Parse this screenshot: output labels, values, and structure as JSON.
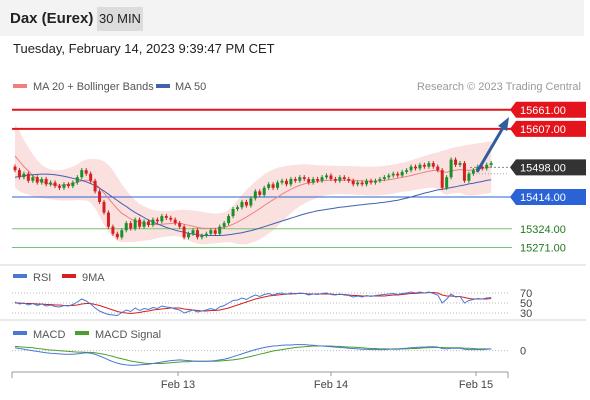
{
  "header": {
    "instrument": "Dax (Eurex)",
    "timeframe": "30 MIN",
    "timestamp": "Tuesday, February 14, 2023 9:39:47 PM CET"
  },
  "colors": {
    "candle_up": "#1a8f2a",
    "candle_down": "#d42020",
    "ma20": "#f08080",
    "ma50": "#4060b0",
    "bollinger_fill": "#fbe0e0",
    "resistance": "#e3141b",
    "pivot": "#333333",
    "support_blue": "#2a63d6",
    "support_green": "#74c474",
    "arrow": "#2f5e9e",
    "rsi": "#4a76d4",
    "rsi_ma": "#d42020",
    "macd": "#4a76d4",
    "macd_signal": "#4aa02a"
  },
  "chart_data": [
    {
      "type": "candlestick",
      "legend": [
        {
          "label": "MA 20 + Bollinger Bands",
          "color": "#f08080"
        },
        {
          "label": "MA 50",
          "color": "#4060b0"
        }
      ],
      "credit": "Research © 2023 Trading Central",
      "ylim": [
        15230,
        15700
      ],
      "x_ticks": [
        "Feb 13",
        "Feb 14",
        "Feb 15"
      ],
      "levels": [
        {
          "value": 15661.0,
          "label": "15661.00",
          "role": "resistance"
        },
        {
          "value": 15607.0,
          "label": "15607.00",
          "role": "resistance"
        },
        {
          "value": 15498.0,
          "label": "15498.00",
          "role": "pivot"
        },
        {
          "value": 15414.0,
          "label": "15414.00",
          "role": "support"
        },
        {
          "value": 15324.0,
          "label": "15324.00",
          "role": "support"
        },
        {
          "value": 15271.0,
          "label": "15271.00",
          "role": "support"
        }
      ],
      "close": [
        15490,
        15470,
        15480,
        15460,
        15470,
        15455,
        15465,
        15450,
        15455,
        15445,
        15440,
        15450,
        15445,
        15455,
        15470,
        15490,
        15480,
        15460,
        15430,
        15400,
        15370,
        15330,
        15310,
        15300,
        15320,
        15340,
        15325,
        15350,
        15330,
        15345,
        15335,
        15350,
        15345,
        15360,
        15355,
        15350,
        15340,
        15330,
        15300,
        15310,
        15320,
        15300,
        15305,
        15310,
        15320,
        15310,
        15330,
        15340,
        15360,
        15380,
        15385,
        15400,
        15390,
        15410,
        15430,
        15420,
        15440,
        15450,
        15440,
        15455,
        15460,
        15450,
        15465,
        15460,
        15470,
        15465,
        15455,
        15465,
        15460,
        15470,
        15475,
        15465,
        15460,
        15470,
        15465,
        15460,
        15450,
        15455,
        15450,
        15460,
        15455,
        15460,
        15465,
        15470,
        15475,
        15480,
        15475,
        15485,
        15490,
        15500,
        15495,
        15505,
        15500,
        15510,
        15500,
        15490,
        15440,
        15470,
        15520,
        15505,
        15510,
        15460,
        15480,
        15490,
        15500,
        15495,
        15505,
        15510
      ],
      "ma20": [
        15530,
        15515,
        15500,
        15488,
        15475,
        15465,
        15458,
        15453,
        15450,
        15448,
        15447,
        15448,
        15450,
        15452,
        15456,
        15460,
        15462,
        15460,
        15452,
        15440,
        15425,
        15410,
        15395,
        15380,
        15368,
        15360,
        15352,
        15346,
        15342,
        15339,
        15337,
        15336,
        15336,
        15337,
        15338,
        15339,
        15340,
        15340,
        15337,
        15334,
        15331,
        15328,
        15326,
        15325,
        15325,
        15325,
        15326,
        15328,
        15332,
        15337,
        15343,
        15350,
        15357,
        15365,
        15373,
        15381,
        15390,
        15398,
        15406,
        15414,
        15422,
        15429,
        15436,
        15442,
        15447,
        15451,
        15454,
        15456,
        15458,
        15460,
        15461,
        15462,
        15462,
        15462,
        15462,
        15462,
        15461,
        15460,
        15460,
        15459,
        15459,
        15459,
        15460,
        15461,
        15463,
        15465,
        15467,
        15470,
        15472,
        15475,
        15478,
        15481,
        15484,
        15487,
        15489,
        15489,
        15485,
        15484,
        15488,
        15490,
        15492,
        15490,
        15490,
        15491,
        15493,
        15495,
        15497,
        15499
      ],
      "bb_upper": [
        15620,
        15600,
        15575,
        15555,
        15535,
        15518,
        15505,
        15497,
        15492,
        15490,
        15490,
        15492,
        15496,
        15500,
        15506,
        15515,
        15520,
        15522,
        15522,
        15520,
        15515,
        15505,
        15490,
        15470,
        15450,
        15433,
        15418,
        15405,
        15395,
        15388,
        15382,
        15378,
        15375,
        15374,
        15374,
        15375,
        15376,
        15378,
        15378,
        15377,
        15376,
        15374,
        15372,
        15370,
        15368,
        15367,
        15368,
        15370,
        15378,
        15390,
        15405,
        15420,
        15434,
        15446,
        15458,
        15468,
        15478,
        15486,
        15492,
        15497,
        15500,
        15502,
        15504,
        15505,
        15506,
        15507,
        15506,
        15505,
        15504,
        15504,
        15503,
        15503,
        15502,
        15502,
        15502,
        15502,
        15501,
        15501,
        15500,
        15500,
        15500,
        15500,
        15501,
        15502,
        15504,
        15506,
        15508,
        15511,
        15514,
        15518,
        15522,
        15526,
        15530,
        15534,
        15538,
        15540,
        15545,
        15548,
        15552,
        15555,
        15558,
        15560,
        15562,
        15564,
        15566,
        15568,
        15570,
        15572
      ],
      "bb_lower": [
        15440,
        15430,
        15425,
        15421,
        15415,
        15412,
        15411,
        15409,
        15408,
        15406,
        15404,
        15404,
        15404,
        15404,
        15406,
        15405,
        15404,
        15398,
        15382,
        15360,
        15335,
        15315,
        15300,
        15290,
        15286,
        15287,
        15286,
        15287,
        15289,
        15290,
        15292,
        15294,
        15297,
        15300,
        15302,
        15303,
        15304,
        15302,
        15296,
        15291,
        15286,
        15282,
        15280,
        15280,
        15282,
        15283,
        15284,
        15286,
        15286,
        15284,
        15281,
        15280,
        15280,
        15284,
        15288,
        15294,
        15302,
        15310,
        15320,
        15331,
        15344,
        15356,
        15368,
        15379,
        15388,
        15395,
        15402,
        15407,
        15412,
        15416,
        15419,
        15421,
        15422,
        15422,
        15422,
        15422,
        15421,
        15419,
        15420,
        15418,
        15418,
        15418,
        15419,
        15420,
        15422,
        15424,
        15426,
        15429,
        15430,
        15432,
        15434,
        15436,
        15438,
        15440,
        15440,
        15438,
        15425,
        15420,
        15424,
        15425,
        15426,
        15420,
        15418,
        15418,
        15420,
        15422,
        15424,
        15426
      ],
      "ma50": [
        15470,
        15472,
        15474,
        15476,
        15477,
        15478,
        15479,
        15479,
        15478,
        15477,
        15475,
        15473,
        15470,
        15467,
        15464,
        15461,
        15457,
        15452,
        15446,
        15439,
        15431,
        15422,
        15413,
        15404,
        15395,
        15387,
        15378,
        15370,
        15363,
        15356,
        15349,
        15343,
        15338,
        15333,
        15328,
        15324,
        15320,
        15317,
        15314,
        15311,
        15309,
        15307,
        15306,
        15305,
        15305,
        15305,
        15305,
        15306,
        15307,
        15309,
        15311,
        15313,
        15316,
        15319,
        15322,
        15326,
        15330,
        15334,
        15338,
        15342,
        15346,
        15350,
        15354,
        15358,
        15362,
        15366,
        15369,
        15372,
        15375,
        15377,
        15379,
        15381,
        15383,
        15385,
        15386,
        15388,
        15389,
        15391,
        15392,
        15394,
        15395,
        15396,
        15398,
        15399,
        15401,
        15403,
        15405,
        15408,
        15411,
        15414,
        15418,
        15421,
        15425,
        15428,
        15431,
        15434,
        15436,
        15438,
        15441,
        15443,
        15446,
        15448,
        15451,
        15453,
        15456,
        15458,
        15461,
        15463
      ]
    },
    {
      "type": "line",
      "legend": [
        {
          "label": "RSI",
          "color": "#4a76d4"
        },
        {
          "label": "9MA",
          "color": "#d42020"
        }
      ],
      "ylim": [
        20,
        80
      ],
      "y_ticks": [
        70,
        50,
        30
      ],
      "series": [
        {
          "name": "RSI",
          "values": [
            52,
            48,
            50,
            46,
            49,
            45,
            48,
            44,
            46,
            43,
            42,
            45,
            44,
            47,
            52,
            58,
            54,
            48,
            40,
            34,
            30,
            27,
            26,
            25,
            31,
            36,
            33,
            40,
            35,
            39,
            37,
            41,
            39,
            44,
            42,
            41,
            38,
            36,
            30,
            33,
            36,
            32,
            34,
            36,
            39,
            36,
            42,
            45,
            50,
            55,
            56,
            60,
            57,
            62,
            66,
            63,
            67,
            69,
            66,
            69,
            70,
            67,
            70,
            68,
            70,
            69,
            66,
            68,
            67,
            69,
            70,
            67,
            66,
            68,
            66,
            65,
            62,
            64,
            62,
            65,
            63,
            65,
            66,
            67,
            68,
            69,
            67,
            69,
            70,
            72,
            70,
            72,
            70,
            72,
            69,
            66,
            50,
            58,
            68,
            62,
            63,
            50,
            55,
            57,
            59,
            58,
            60,
            61
          ]
        },
        {
          "name": "9MA",
          "values": [
            50,
            50,
            49,
            49,
            49,
            48,
            48,
            47,
            47,
            46,
            46,
            45,
            45,
            45,
            46,
            48,
            49,
            49,
            47,
            45,
            42,
            39,
            36,
            33,
            31,
            30,
            29,
            30,
            31,
            33,
            34,
            36,
            37,
            38,
            39,
            40,
            40,
            40,
            38,
            37,
            36,
            35,
            34,
            34,
            35,
            35,
            36,
            38,
            40,
            43,
            46,
            49,
            52,
            55,
            58,
            60,
            62,
            64,
            65,
            66,
            67,
            68,
            68,
            69,
            69,
            69,
            68,
            68,
            68,
            68,
            68,
            68,
            67,
            67,
            67,
            66,
            65,
            65,
            64,
            64,
            64,
            64,
            64,
            64,
            65,
            66,
            66,
            67,
            68,
            69,
            69,
            70,
            70,
            71,
            71,
            70,
            66,
            64,
            64,
            63,
            63,
            61,
            59,
            58,
            58,
            58,
            58,
            59
          ]
        }
      ]
    },
    {
      "type": "line",
      "legend": [
        {
          "label": "MACD",
          "color": "#4a76d4"
        },
        {
          "label": "MACD Signal",
          "color": "#4aa02a"
        }
      ],
      "ylim": [
        -60,
        30
      ],
      "y_ticks": [
        0
      ],
      "series": [
        {
          "name": "MACD",
          "values": [
            8,
            6,
            4,
            2,
            0,
            -2,
            -4,
            -6,
            -7,
            -8,
            -9,
            -10,
            -10,
            -10,
            -9,
            -7,
            -6,
            -7,
            -10,
            -15,
            -20,
            -26,
            -31,
            -35,
            -38,
            -40,
            -41,
            -41,
            -40,
            -39,
            -38,
            -36,
            -34,
            -32,
            -30,
            -28,
            -27,
            -26,
            -27,
            -28,
            -29,
            -30,
            -30,
            -30,
            -29,
            -28,
            -26,
            -24,
            -21,
            -17,
            -13,
            -9,
            -5,
            -1,
            3,
            6,
            9,
            11,
            13,
            14,
            15,
            16,
            16,
            17,
            17,
            17,
            16,
            15,
            14,
            13,
            12,
            11,
            10,
            9,
            8,
            7,
            6,
            5,
            4,
            4,
            3,
            3,
            3,
            3,
            4,
            5,
            5,
            6,
            7,
            8,
            9,
            10,
            10,
            11,
            11,
            10,
            6,
            5,
            7,
            7,
            7,
            4,
            3,
            3,
            3,
            3,
            4,
            5
          ]
        },
        {
          "name": "MACD Signal",
          "values": [
            12,
            11,
            10,
            9,
            8,
            6,
            5,
            3,
            2,
            1,
            0,
            -1,
            -2,
            -3,
            -4,
            -4,
            -5,
            -5,
            -6,
            -8,
            -10,
            -13,
            -16,
            -20,
            -23,
            -26,
            -29,
            -31,
            -33,
            -35,
            -36,
            -36,
            -36,
            -36,
            -35,
            -34,
            -33,
            -32,
            -31,
            -31,
            -30,
            -30,
            -30,
            -30,
            -30,
            -30,
            -29,
            -28,
            -27,
            -26,
            -24,
            -22,
            -19,
            -16,
            -13,
            -10,
            -7,
            -4,
            -1,
            1,
            3,
            5,
            7,
            9,
            10,
            11,
            12,
            13,
            13,
            13,
            13,
            13,
            12,
            12,
            11,
            10,
            10,
            9,
            8,
            7,
            6,
            6,
            5,
            5,
            5,
            4,
            4,
            5,
            5,
            6,
            6,
            7,
            8,
            8,
            9,
            9,
            9,
            8,
            8,
            8,
            8,
            7,
            7,
            6,
            5,
            5,
            5,
            5
          ]
        }
      ]
    }
  ]
}
